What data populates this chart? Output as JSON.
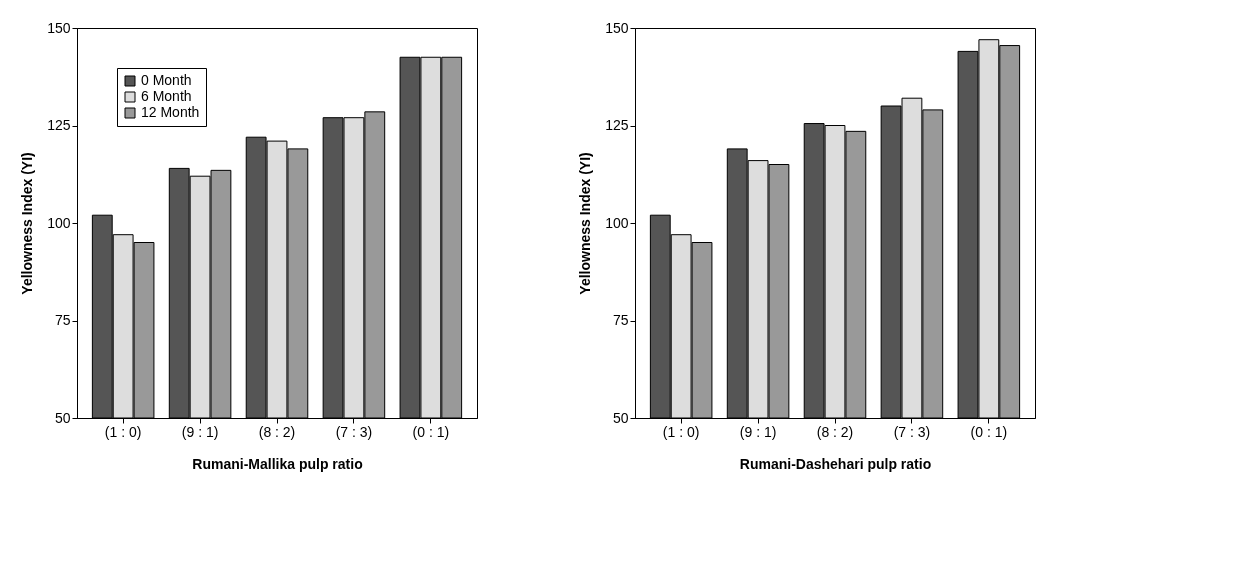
{
  "chart_data": [
    {
      "type": "bar",
      "xlabel": "Rumani-Mallika pulp ratio",
      "ylabel": "Yellowness Index (YI)",
      "categories": [
        "(1 : 0)",
        "(9 : 1)",
        "(8 : 2)",
        "(7 : 3)",
        "(0 : 1)"
      ],
      "ylim": [
        50,
        150
      ],
      "yticks": [
        50,
        75,
        100,
        125,
        150
      ],
      "grid": false,
      "legend": "top left",
      "series": [
        {
          "name": "0 Month",
          "color": "#555555",
          "values": [
            102,
            114,
            122,
            127,
            142.5
          ]
        },
        {
          "name": "6 Month",
          "color": "#dddddd",
          "values": [
            97,
            112,
            121,
            127,
            142.5
          ]
        },
        {
          "name": "12 Month",
          "color": "#999999",
          "values": [
            95,
            113.5,
            119,
            128.5,
            142.5
          ]
        }
      ]
    },
    {
      "type": "bar",
      "xlabel": "Rumani-Dashehari pulp ratio",
      "ylabel": "Yellowness Index (YI)",
      "categories": [
        "(1 : 0)",
        "(9 : 1)",
        "(8 : 2)",
        "(7 : 3)",
        "(0 : 1)"
      ],
      "ylim": [
        50,
        150
      ],
      "yticks": [
        50,
        75,
        100,
        125,
        150
      ],
      "grid": false,
      "legend": "top left",
      "series": [
        {
          "name": "0 Month",
          "color": "#555555",
          "values": [
            102,
            119,
            125.5,
            130,
            144
          ]
        },
        {
          "name": "6 Month",
          "color": "#dddddd",
          "values": [
            97,
            116,
            125,
            132,
            147
          ]
        },
        {
          "name": "12 Month",
          "color": "#999999",
          "values": [
            95,
            115,
            123.5,
            129,
            145.5
          ]
        }
      ]
    }
  ]
}
